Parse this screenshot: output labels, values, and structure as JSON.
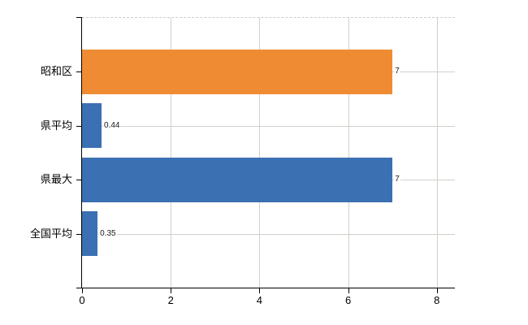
{
  "chart_data": {
    "type": "bar",
    "orientation": "horizontal",
    "title": "",
    "xlabel": "",
    "ylabel": "",
    "categories": [
      "昭和区",
      "県平均",
      "県最大",
      "全国平均"
    ],
    "values": [
      7,
      0.44,
      7,
      0.35
    ],
    "value_labels": [
      "7",
      "0.44",
      "7",
      "0.35"
    ],
    "bar_colors": [
      "#EF8C33",
      "#3B70B2",
      "#3B70B2",
      "#3B70B2"
    ],
    "x_ticks": [
      0,
      2,
      4,
      6,
      8
    ],
    "x_tick_labels": [
      "0",
      "2",
      "4",
      "6",
      "8"
    ],
    "xlim": [
      0,
      8.4
    ],
    "grid": true,
    "legend": "none",
    "colors": {
      "highlight_bar": "#EF8C33",
      "comparison_bar": "#3B70B2",
      "gridline": "#CCD3CA",
      "axis": "#000000",
      "label_text": "#000000"
    }
  }
}
